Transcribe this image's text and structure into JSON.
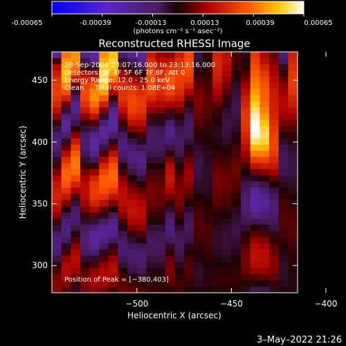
{
  "colorbar": {
    "ticks": [
      "-0.00065",
      "-0.00039",
      "-0.00013",
      "0.00013",
      "0.00039",
      "0.00065"
    ],
    "unit_label": "(photons cm⁻² s⁻¹ asec⁻²)",
    "range": [
      -0.00065,
      0.00065
    ]
  },
  "chart_data": {
    "type": "heatmap",
    "title": "Reconstructed RHESSI Image",
    "xlabel": "Heliocentric X (arcsec)",
    "ylabel": "Heliocentric Y (arcsec)",
    "xlim": [
      -545,
      -415
    ],
    "ylim": [
      278,
      473
    ],
    "xticks": [
      -500,
      -450,
      -400
    ],
    "xtick_labels": [
      "−500",
      "−450",
      "−400"
    ],
    "yticks": [
      300,
      350,
      400,
      450
    ],
    "ytick_labels": [
      "300",
      "350",
      "400",
      "450"
    ],
    "info_lines": [
      "28-Sep-2004 23:07:16.000 to 23:13:16.000",
      "Detectors: 3F 4F 5F 6F 7F 8F, Att 0",
      "Energy Range: 12.0 - 25.0 keV",
      "Clean     Total counts: 1.08E+04"
    ],
    "peak_label": "Position of Peak = [−380,403]",
    "peak": {
      "x": -380,
      "y": 403,
      "value": 0.00065
    },
    "colormap": "blue-purple-red-orange-yellow-white",
    "rows": 39,
    "cols": 26,
    "z": [
      [
        -0.00017,
        0.00039,
        0.00044,
        -0.00013,
        -0.00024,
        0.00043,
        0.00051,
        -0.0001,
        -0.00015,
        -0.00017,
        0.00019,
        0.00012,
        0.0001,
        0.00021,
        0.00031,
        -5e-05,
        2e-05,
        0.00022,
        0.00017,
        4e-05,
        -2e-05,
        0.00027,
        0.00014,
        7e-05,
        -0.00011,
        0.00021
      ],
      [
        3e-05,
        0.00044,
        0.00043,
        -6e-05,
        -0.00015,
        0.00048,
        0.00055,
        -4e-05,
        -9e-05,
        -0.00013,
        0.00024,
        0.00016,
        0.00018,
        0.00025,
        0.00033,
        -4e-05,
        1e-05,
        0.00023,
        0.00018,
        4e-05,
        -1e-05,
        0.00029,
        0.00017,
        9e-05,
        -8e-05,
        0.00023
      ],
      [
        0.00015,
        0.00048,
        0.00038,
        3e-05,
        -3e-05,
        0.00054,
        0.00052,
        4e-05,
        -2e-05,
        -7e-05,
        0.00029,
        0.0002,
        0.00026,
        0.00028,
        0.00033,
        -2e-05,
        1e-05,
        0.00023,
        0.00016,
        3e-05,
        1e-05,
        0.00032,
        0.00022,
        0.00012,
        -3e-05,
        0.00025
      ],
      [
        0.0002,
        0.00051,
        0.00029,
        0.00014,
        0.00011,
        0.00058,
        0.00046,
        0.00012,
        6e-05,
        1e-05,
        0.00032,
        0.00024,
        0.00033,
        0.00029,
        0.00031,
        1e-05,
        2e-05,
        0.00022,
        0.00014,
        1e-05,
        4e-05,
        0.00035,
        0.00027,
        0.00014,
        2e-05,
        0.00027
      ],
      [
        0.00025,
        0.00049,
        0.00018,
        0.00023,
        0.00025,
        0.00058,
        0.00037,
        0.00019,
        0.00014,
        0.0001,
        0.00033,
        0.00026,
        0.00035,
        0.00029,
        0.00027,
        4e-05,
        3e-05,
        0.0002,
        0.00011,
        -1e-05,
        8e-05,
        0.00038,
        0.00031,
        0.00016,
        6e-05,
        0.00028
      ],
      [
        0.00028,
        0.00043,
        7e-05,
        0.00029,
        0.00036,
        0.00054,
        0.00026,
        0.00024,
        0.00021,
        0.00018,
        0.00032,
        0.00026,
        0.00034,
        0.00027,
        0.00021,
        6e-05,
        4e-05,
        0.00017,
        8e-05,
        -3e-05,
        0.00012,
        0.00041,
        0.00034,
        0.00018,
        0.0001,
        0.00028
      ],
      [
        0.00029,
        0.00033,
        -3e-05,
        0.00032,
        0.00042,
        0.00046,
        0.00014,
        0.00026,
        0.00027,
        0.00024,
        0.00029,
        0.00024,
        0.0003,
        0.00024,
        0.00014,
        8e-05,
        5e-05,
        0.00014,
        5e-05,
        -4e-05,
        0.00016,
        0.00045,
        0.00035,
        0.00019,
        0.00012,
        0.00026
      ],
      [
        0.00027,
        0.00021,
        -0.0001,
        0.00031,
        0.00043,
        0.00035,
        3e-05,
        0.00026,
        0.0003,
        0.00027,
        0.00024,
        0.0002,
        0.00023,
        0.00019,
        7e-05,
        9e-05,
        6e-05,
        0.0001,
        2e-05,
        -5e-05,
        0.0002,
        0.00049,
        0.00036,
        0.0002,
        0.00014,
        0.00023
      ],
      [
        0.00023,
        8e-05,
        -0.00014,
        0.00026,
        0.00038,
        0.00022,
        -7e-05,
        0.00022,
        0.00031,
        0.00028,
        0.00017,
        0.00015,
        0.00014,
        0.00013,
        1e-05,
        9e-05,
        6e-05,
        6e-05,
        -1e-05,
        -6e-05,
        0.00023,
        0.00054,
        0.00038,
        0.00021,
        0.00015,
        0.0002
      ],
      [
        0.00017,
        -4e-05,
        -0.00014,
        0.00019,
        0.00029,
        9e-05,
        -0.00014,
        0.00017,
        0.00029,
        0.00026,
        0.0001,
        9e-05,
        5e-05,
        7e-05,
        -4e-05,
        8e-05,
        5e-05,
        3e-05,
        -3e-05,
        -6e-05,
        0.00026,
        0.00058,
        0.00041,
        0.00022,
        0.00014,
        0.00016
      ],
      [
        0.0001,
        -0.00012,
        -0.00011,
        0.00011,
        0.00017,
        -3e-05,
        -0.00018,
        0.0001,
        0.00024,
        0.00022,
        3e-05,
        3e-05,
        -3e-05,
        1e-05,
        -7e-05,
        7e-05,
        4e-05,
        1e-05,
        -4e-05,
        -5e-05,
        0.00027,
        0.00062,
        0.00045,
        0.00023,
        0.00012,
        0.00012
      ],
      [
        2e-05,
        -0.00016,
        -6e-05,
        3e-05,
        5e-05,
        -0.00011,
        -0.00019,
        3e-05,
        0.00017,
        0.00017,
        -3e-05,
        -2e-05,
        -9e-05,
        -3e-05,
        -8e-05,
        5e-05,
        3e-05,
        -1e-05,
        -5e-05,
        -4e-05,
        0.00027,
        0.00064,
        0.00051,
        0.00025,
        9e-05,
        8e-05
      ],
      [
        -5e-05,
        -0.00015,
        1e-05,
        -4e-05,
        -6e-05,
        -0.00016,
        -0.00016,
        -3e-05,
        9e-05,
        0.00011,
        -7e-05,
        -6e-05,
        -0.00013,
        -6e-05,
        -8e-05,
        3e-05,
        2e-05,
        -2e-05,
        -5e-05,
        -3e-05,
        0.00026,
        0.00065,
        0.00055,
        0.00027,
        5e-05,
        5e-05
      ],
      [
        -0.0001,
        -0.0001,
        0.0001,
        -9e-05,
        -0.00014,
        -0.00016,
        -0.0001,
        -8e-05,
        1e-05,
        4e-05,
        -9e-05,
        -8e-05,
        -0.00013,
        -8e-05,
        -7e-05,
        1e-05,
        1e-05,
        -2e-05,
        -4e-05,
        -1e-05,
        0.00023,
        0.00063,
        0.00057,
        0.00029,
        1e-05,
        2e-05
      ],
      [
        -0.00012,
        -3e-05,
        0.00019,
        -0.00011,
        -0.00018,
        -0.00012,
        -2e-05,
        -0.00011,
        -5e-05,
        -2e-05,
        -9e-05,
        -9e-05,
        -0.0001,
        -9e-05,
        -4e-05,
        -1e-05,
        0.0,
        -1e-05,
        -3e-05,
        1e-05,
        0.0002,
        0.00058,
        0.00055,
        0.0003,
        -3e-05,
        -1e-05
      ],
      [
        -0.00011,
        6e-05,
        0.00028,
        -0.00011,
        -0.00018,
        -5e-05,
        7e-05,
        -0.00012,
        -0.0001,
        -7e-05,
        -8e-05,
        -8e-05,
        -5e-05,
        -8e-05,
        -1e-05,
        -3e-05,
        -1e-05,
        0.0,
        -1e-05,
        3e-05,
        0.00016,
        0.0005,
        0.00049,
        0.0003,
        -6e-05,
        -3e-05
      ],
      [
        -8e-05,
        0.00016,
        0.00035,
        -8e-05,
        -0.00014,
        4e-05,
        0.00017,
        -0.0001,
        -0.00012,
        -0.00011,
        -6e-05,
        -6e-05,
        2e-05,
        -6e-05,
        3e-05,
        -4e-05,
        -2e-05,
        2e-05,
        1e-05,
        5e-05,
        0.00012,
        0.0004,
        0.0004,
        0.00028,
        -7e-05,
        -4e-05
      ],
      [
        -3e-05,
        0.00025,
        0.00039,
        -4e-05,
        -7e-05,
        0.00014,
        0.00026,
        -6e-05,
        -0.00012,
        -0.00013,
        -3e-05,
        -3e-05,
        9e-05,
        -3e-05,
        7e-05,
        -5e-05,
        -2e-05,
        4e-05,
        3e-05,
        6e-05,
        8e-05,
        0.00029,
        0.0003,
        0.00024,
        -8e-05,
        -5e-05
      ],
      [
        3e-05,
        0.00032,
        0.0004,
        2e-05,
        2e-05,
        0.00023,
        0.00033,
        -1e-05,
        -9e-05,
        -0.00012,
        0.0,
        0.0,
        0.00015,
        0.0,
        0.0001,
        -5e-05,
        -3e-05,
        6e-05,
        5e-05,
        7e-05,
        4e-05,
        0.00018,
        0.0002,
        0.00019,
        -7e-05,
        -5e-05
      ],
      [
        9e-05,
        0.00036,
        0.00037,
        8e-05,
        0.00012,
        0.0003,
        0.00037,
        4e-05,
        -5e-05,
        -9e-05,
        3e-05,
        3e-05,
        0.00018,
        3e-05,
        0.00012,
        -5e-05,
        -3e-05,
        7e-05,
        6e-05,
        7e-05,
        0.0,
        7e-05,
        0.0001,
        0.00013,
        -6e-05,
        -5e-05
      ],
      [
        0.00015,
        0.00036,
        0.00031,
        0.00013,
        0.00021,
        0.00035,
        0.00037,
        9e-05,
        0.0,
        -4e-05,
        5e-05,
        5e-05,
        0.00019,
        6e-05,
        0.00012,
        -4e-05,
        -3e-05,
        8e-05,
        7e-05,
        6e-05,
        -3e-05,
        -2e-05,
        1e-05,
        6e-05,
        -4e-05,
        -4e-05
      ],
      [
        0.00019,
        0.00033,
        0.00022,
        0.00016,
        0.00027,
        0.00035,
        0.00034,
        0.00013,
        5e-05,
        1e-05,
        7e-05,
        6e-05,
        0.00017,
        8e-05,
        0.0001,
        -3e-05,
        -3e-05,
        8e-05,
        7e-05,
        5e-05,
        -6e-05,
        -0.0001,
        -6e-05,
        0.0,
        -2e-05,
        -3e-05
      ],
      [
        0.00021,
        0.00026,
        0.00013,
        0.00017,
        0.00029,
        0.00032,
        0.00027,
        0.00016,
        0.0001,
        6e-05,
        8e-05,
        7e-05,
        0.00013,
        9e-05,
        7e-05,
        -2e-05,
        -2e-05,
        7e-05,
        6e-05,
        4e-05,
        -8e-05,
        -0.00015,
        -0.00011,
        -5e-05,
        0.0,
        -2e-05
      ],
      [
        0.00022,
        0.00018,
        4e-05,
        0.00016,
        0.00027,
        0.00026,
        0.00018,
        0.00017,
        0.00014,
        0.00011,
        8e-05,
        7e-05,
        8e-05,
        9e-05,
        4e-05,
        0.0,
        -1e-05,
        6e-05,
        5e-05,
        2e-05,
        -0.0001,
        -0.00018,
        -0.00014,
        -9e-05,
        2e-05,
        0.0
      ],
      [
        0.0002,
        9e-05,
        -4e-05,
        0.00013,
        0.00022,
        0.00017,
        9e-05,
        0.00016,
        0.00017,
        0.00014,
        7e-05,
        6e-05,
        2e-05,
        8e-05,
        0.0,
        2e-05,
        0.0,
        5e-05,
        4e-05,
        0.0,
        -0.00011,
        -0.00018,
        -0.00015,
        -0.00011,
        3e-05,
        1e-05
      ],
      [
        0.00016,
        1e-05,
        -9e-05,
        8e-05,
        0.00014,
        7e-05,
        0.0,
        0.00013,
        0.00018,
        0.00016,
        5e-05,
        4e-05,
        -3e-05,
        6e-05,
        -3e-05,
        3e-05,
        1e-05,
        3e-05,
        2e-05,
        -2e-05,
        -0.00011,
        -0.00016,
        -0.00014,
        -0.00011,
        4e-05,
        3e-05
      ],
      [
        0.0001,
        -6e-05,
        -0.00011,
        2e-05,
        5e-05,
        -2e-05,
        -8e-05,
        9e-05,
        0.00017,
        0.00016,
        2e-05,
        2e-05,
        -8e-05,
        3e-05,
        -6e-05,
        4e-05,
        2e-05,
        1e-05,
        0.0,
        -3e-05,
        -9e-05,
        -0.00012,
        -0.00011,
        -0.0001,
        5e-05,
        4e-05
      ],
      [
        3e-05,
        -0.00011,
        -0.0001,
        -3e-05,
        -4e-05,
        -9e-05,
        -0.00013,
        4e-05,
        0.00014,
        0.00014,
        -1e-05,
        -1e-05,
        -0.00011,
        0.0,
        -8e-05,
        5e-05,
        3e-05,
        -1e-05,
        -2e-05,
        -4e-05,
        -7e-05,
        -6e-05,
        -7e-05,
        -8e-05,
        5e-05,
        5e-05
      ],
      [
        -4e-05,
        -0.00013,
        -6e-05,
        -8e-05,
        -0.00011,
        -0.00014,
        -0.00015,
        -1e-05,
        9e-05,
        0.0001,
        -4e-05,
        -4e-05,
        -0.00012,
        -3e-05,
        -8e-05,
        5e-05,
        4e-05,
        -2e-05,
        -3e-05,
        -5e-05,
        -4e-05,
        0.0,
        -2e-05,
        -5e-05,
        4e-05,
        5e-05
      ],
      [
        -9e-05,
        -0.00012,
        -1e-05,
        -0.00011,
        -0.00016,
        -0.00015,
        -0.00014,
        -6e-05,
        3e-05,
        5e-05,
        -6e-05,
        -6e-05,
        -0.00011,
        -6e-05,
        -7e-05,
        4e-05,
        4e-05,
        -3e-05,
        -4e-05,
        -5e-05,
        -1e-05,
        6e-05,
        4e-05,
        -2e-05,
        3e-05,
        5e-05
      ],
      [
        -0.00012,
        -8e-05,
        5e-05,
        -0.00012,
        -0.00017,
        -0.00013,
        -9e-05,
        -9e-05,
        -3e-05,
        -1e-05,
        -8e-05,
        -7e-05,
        -8e-05,
        -8e-05,
        -5e-05,
        3e-05,
        4e-05,
        -3e-05,
        -4e-05,
        -4e-05,
        2e-05,
        0.00011,
        9e-05,
        2e-05,
        2e-05,
        4e-05
      ],
      [
        -0.00012,
        -2e-05,
        0.0001,
        -0.00011,
        -0.00015,
        -8e-05,
        -2e-05,
        -0.0001,
        -7e-05,
        -6e-05,
        -8e-05,
        -8e-05,
        -3e-05,
        -8e-05,
        -2e-05,
        2e-05,
        3e-05,
        -3e-05,
        -4e-05,
        -3e-05,
        5e-05,
        0.00015,
        0.00013,
        5e-05,
        0.0,
        3e-05
      ],
      [
        -0.0001,
        4e-05,
        0.00014,
        -8e-05,
        -0.0001,
        -2e-05,
        5e-05,
        -0.0001,
        -0.0001,
        -0.0001,
        -7e-05,
        -7e-05,
        2e-05,
        -7e-05,
        1e-05,
        0.0,
        2e-05,
        -2e-05,
        -3e-05,
        -2e-05,
        7e-05,
        0.00017,
        0.00016,
        8e-05,
        -1e-05,
        2e-05
      ],
      [
        -6e-05,
        0.0001,
        0.00016,
        -4e-05,
        -3e-05,
        5e-05,
        0.00011,
        -7e-05,
        -0.0001,
        -0.00011,
        -5e-05,
        -5e-05,
        6e-05,
        -5e-05,
        3e-05,
        -1e-05,
        1e-05,
        -1e-05,
        -2e-05,
        0.0,
        8e-05,
        0.00017,
        0.00016,
        0.0001,
        -2e-05,
        1e-05
      ],
      [
        -1e-05,
        0.00014,
        0.00015,
        1e-05,
        4e-05,
        0.00011,
        0.00015,
        -4e-05,
        -8e-05,
        -0.0001,
        -3e-05,
        -3e-05,
        8e-05,
        -2e-05,
        5e-05,
        -2e-05,
        0.0,
        0.0,
        0.0,
        1e-05,
        8e-05,
        0.00015,
        0.00015,
        0.0001,
        -3e-05,
        0.0
      ],
      [
        4e-05,
        0.00015,
        0.00012,
        5e-05,
        0.0001,
        0.00014,
        0.00016,
        0.0,
        -5e-05,
        -7e-05,
        -1e-05,
        -1e-05,
        9e-05,
        0.0,
        5e-05,
        -3e-05,
        -1e-05,
        1e-05,
        1e-05,
        2e-05,
        7e-05,
        0.00011,
        0.00011,
        9e-05,
        -3e-05,
        -1e-05
      ],
      [
        8e-05,
        0.00014,
        7e-05,
        8e-05,
        0.00013,
        0.00015,
        0.00014,
        4e-05,
        -1e-05,
        -3e-05,
        0.0,
        0.0,
        8e-05,
        2e-05,
        4e-05,
        -3e-05,
        -1e-05,
        2e-05,
        2e-05,
        2e-05,
        4e-05,
        5e-05,
        6e-05,
        6e-05,
        -3e-05,
        -1e-05
      ],
      [
        0.0001,
        0.0001,
        2e-05,
        9e-05,
        0.00013,
        0.00013,
        9e-05,
        6e-05,
        3e-05,
        1e-05,
        2e-05,
        1e-05,
        5e-05,
        3e-05,
        2e-05,
        -2e-05,
        -1e-05,
        2e-05,
        2e-05,
        2e-05,
        1e-05,
        -1e-05,
        0.0,
        2e-05,
        -2e-05,
        -1e-05
      ],
      [
        0.0001,
        5e-05,
        -2e-05,
        8e-05,
        0.0001,
        8e-05,
        3e-05,
        7e-05,
        6e-05,
        4e-05,
        2e-05,
        2e-05,
        1e-05,
        3e-05,
        0.0,
        -1e-05,
        0.0,
        1e-05,
        1e-05,
        1e-05,
        -2e-05,
        -6e-05,
        -5e-05,
        -2e-05,
        -1e-05,
        -1e-05
      ]
    ]
  },
  "footer": {
    "timestamp": "3–May–2022 21:26"
  },
  "colors": {
    "background": "#000000",
    "text": "#ffffff"
  }
}
